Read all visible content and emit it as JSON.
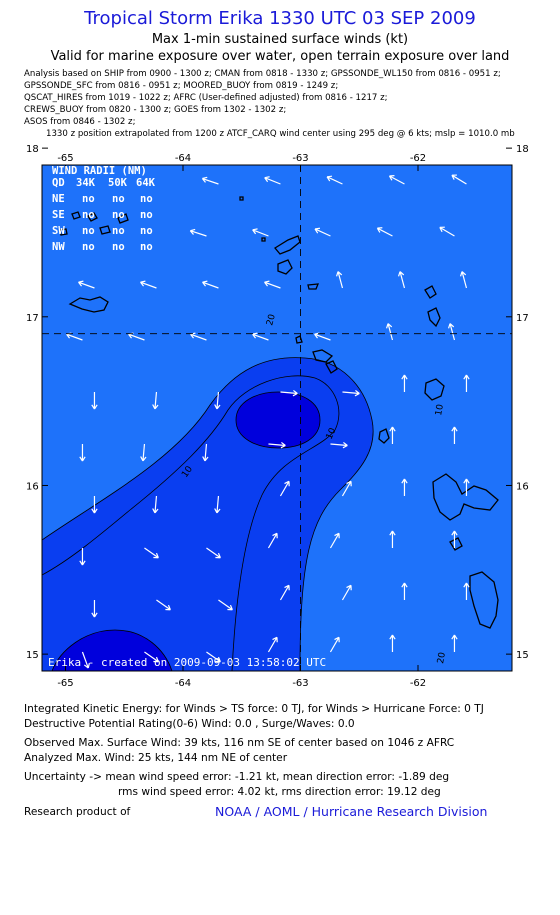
{
  "header": {
    "title": "Tropical Storm Erika 1330 UTC 03 SEP 2009",
    "subtitle1": "Max 1-min sustained surface winds (kt)",
    "subtitle2": "Valid for marine exposure over water, open terrain exposure over land"
  },
  "analysis_lines": [
    "Analysis based on  SHIP from 0900 - 1300 z;  CMAN from 0818 - 1330 z;  GPSSONDE_WL150 from 0816 - 0951 z;",
    "GPSSONDE_SFC from 0816 - 0951 z;  MOORED_BUOY from 0819 - 1249 z;",
    "QSCAT_HIRES from 1019 - 1022 z;  AFRC (User-defined adjusted) from 0816 - 1217 z;",
    "CREWS_BUOY from 0820 - 1300 z;  GOES from 1302 - 1302 z;",
    "ASOS from 0846 - 1302 z;",
    "1330 z position extrapolated from 1200 z ATCF_CARQ wind center using 295 deg @ 6 kts; mslp = 1010.0 mb"
  ],
  "map": {
    "x_ticks": [
      "-65",
      "-64",
      "-63",
      "-62"
    ],
    "y_ticks": [
      "18",
      "17",
      "16",
      "15"
    ],
    "lon_range": [
      -65.2,
      -61.2
    ],
    "lat_range": [
      14.9,
      17.9
    ],
    "center": {
      "lon": -63.0,
      "lat": 16.9
    },
    "contour_labels": [
      "10",
      "10",
      "10",
      "20",
      "20"
    ],
    "credit": "Erika - created on 2009-09-03 13:58:02 UTC",
    "colors": {
      "level0": "#0000dc",
      "level1": "#0a3ef0",
      "level2": "#1e72fa",
      "level3": "#1aa3fa",
      "level4": "#1fc4ff",
      "contour": "#000000",
      "arrow": "#ffffff"
    }
  },
  "wind_radii": {
    "title": "WIND RADII (NM)",
    "headers": [
      "QD",
      "34K",
      "50K",
      "64K"
    ],
    "rows": [
      {
        "quad": "NE",
        "v34": "no",
        "v50": "no",
        "v64": "no"
      },
      {
        "quad": "SE",
        "v34": "no",
        "v50": "no",
        "v64": "no"
      },
      {
        "quad": "SW",
        "v34": "no",
        "v50": "no",
        "v64": "no"
      },
      {
        "quad": "NW",
        "v34": "no",
        "v50": "no",
        "v64": "no"
      }
    ]
  },
  "footer": {
    "ike": "Integrated Kinetic Energy:  for Winds > TS force: 0 TJ,  for Winds > Hurricane Force: 0 TJ",
    "dpr": "Destructive Potential Rating(0-6)   Wind: 0.0 , Surge/Waves: 0.0",
    "obs_max": "Observed Max. Surface Wind: 39 kts, 116 nm SE of center based on 1046 z AFRC",
    "analyzed_max": "Analyzed Max. Wind: 25 kts, 144 nm NE of center",
    "uncertainty": "Uncertainty -> mean wind speed error:  -1.21 kt,   mean direction error:  -1.89 deg",
    "rms": "rms wind speed error: 4.02 kt,   rms direction error: 19.12 deg",
    "research": "Research product of",
    "noaa": "NOAA / AOML / Hurricane Research Division"
  }
}
